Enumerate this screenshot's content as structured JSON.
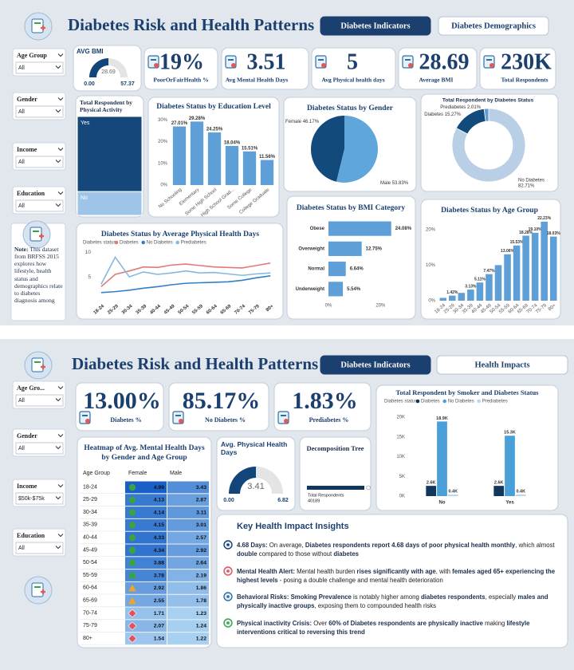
{
  "dashboards": [
    {
      "title": "Diabetes Risk and Health Patterns",
      "tabs": [
        "Diabetes Indicators",
        "Diabetes Demographics"
      ],
      "filters": [
        {
          "label": "Age Group",
          "value": "All"
        },
        {
          "label": "Gender",
          "value": "All"
        },
        {
          "label": "Income",
          "value": "All"
        },
        {
          "label": "Education",
          "value": "All"
        }
      ],
      "note": {
        "label": "Note:",
        "text": "This dataset from BRFSS 2015 explores how lifestyle, health status and demographics relate to diabetes diagnosis among"
      },
      "gauge": {
        "type": "gauge",
        "title": "AVG BMI",
        "value": 28.69,
        "range": [
          {
            "value": 0,
            "label": "0.00"
          },
          57.37
        ],
        "color": "#12457a"
      },
      "kpis": [
        {
          "value": "19%",
          "label": "PoorOrFairHealth %"
        },
        {
          "value": "3.51",
          "label": "Avg Mental Health Days"
        },
        {
          "value": "5",
          "label": "Avg Physical health days"
        },
        {
          "value": "28.69",
          "label": "Average BMI"
        },
        {
          "value": "230K",
          "label": "Total Respondents"
        }
      ],
      "activity": {
        "type": "treemap",
        "title": "Total Respondent by Physical Activity",
        "categories": [
          "Yes",
          "No"
        ],
        "values": [
          76,
          24
        ],
        "colors": [
          "#16477a",
          "#9ec5e8"
        ]
      },
      "education": {
        "type": "bar",
        "title": "Diabetes Status by Education Level",
        "categories": [
          "No Schooling",
          "Elementary",
          "Some High School",
          "High School Grad...",
          "Some College",
          "College Graduate"
        ],
        "values": [
          27.01,
          29.28,
          24.25,
          18.04,
          15.51,
          11.56
        ],
        "value_labels": [
          "27.01%",
          "29.28%",
          "24.25%",
          "18.04%",
          "15.51%",
          "11.56%"
        ],
        "color": "#5d9fd6",
        "ylim": [
          0,
          32
        ],
        "yticks": [
          {
            "value": 0,
            "label": "0%"
          },
          {
            "value": 10,
            "label": "10%"
          },
          {
            "value": 20,
            "label": "20%"
          },
          {
            "value": 30,
            "label": "30%"
          }
        ]
      },
      "gender": {
        "type": "pie",
        "title": "Diabetes Status by Gender",
        "categories": [
          "Female",
          "Male"
        ],
        "values": [
          46.17,
          53.83
        ],
        "value_labels": [
          "46.17%",
          "53.83%"
        ],
        "colors": [
          "#134a7c",
          "#5fa6da"
        ]
      },
      "status": {
        "type": "donut",
        "title": "Total Respondent by Diabetes Status",
        "categories": [
          "No Diabetes",
          "Diabetes",
          "Prediabetes"
        ],
        "values": [
          82.71,
          15.27,
          2.01
        ],
        "value_labels": [
          "82.71%",
          "15.27%",
          "2.01%"
        ],
        "colors": [
          "#b9cfe5",
          "#134a7c",
          "#5f9ed1"
        ]
      },
      "physical_days": {
        "type": "line",
        "title": "Diabetes Status by Average Physical Health Days",
        "legend_title": "Diabetes status",
        "categories": [
          "18-24",
          "25-29",
          "30-34",
          "35-39",
          "40-44",
          "45-49",
          "50-54",
          "55-59",
          "60-64",
          "65-69",
          "70-74",
          "75-79",
          "80+"
        ],
        "series": [
          {
            "name": "Diabetes",
            "color": "#e07b78",
            "values": [
              3.0,
              5.5,
              6.2,
              7.0,
              6.9,
              7.4,
              7.6,
              7.3,
              7.0,
              6.9,
              6.8,
              7.3,
              7.8
            ]
          },
          {
            "name": "No Diabetes",
            "color": "#2f80c8",
            "values": [
              1.8,
              2.0,
              2.3,
              2.7,
              3.0,
              3.4,
              3.7,
              3.8,
              3.9,
              4.0,
              4.3,
              4.8,
              5.2
            ]
          },
          {
            "name": "Prediabetes",
            "color": "#86b8df",
            "values": [
              3.5,
              9.0,
              5.0,
              6.0,
              5.5,
              5.8,
              6.2,
              5.8,
              5.9,
              5.6,
              5.3,
              5.6,
              5.8
            ]
          }
        ],
        "ylim": [
          0,
          11
        ],
        "yticks": [
          5,
          10
        ]
      },
      "bmi": {
        "type": "hbar",
        "title": "Diabetes Status by BMI Category",
        "categories": [
          "Obese",
          "Overweight",
          "Normal",
          "Underweight"
        ],
        "values": [
          24.08,
          12.75,
          6.64,
          5.54
        ],
        "value_labels": [
          "24.08%",
          "12.75%",
          "6.64%",
          "5.54%"
        ],
        "color": "#5d9fd6",
        "xlim": [
          0,
          26
        ],
        "xticks": [
          {
            "value": 0,
            "label": "0%"
          },
          {
            "value": 20,
            "label": "20%"
          }
        ]
      },
      "age": {
        "type": "bar",
        "title": "Diabetes Status by Age Group",
        "categories": [
          "18-24",
          "25-29",
          "30-34",
          "35-39",
          "40-44",
          "45-49",
          "50-54",
          "55-59",
          "60-64",
          "65-69",
          "70-74",
          "75-79",
          "80+"
        ],
        "values": [
          0.8,
          1.42,
          2.2,
          3.13,
          5.11,
          7.47,
          10.0,
          13.06,
          15.53,
          18.28,
          19.1,
          22.23,
          18.03
        ],
        "value_labels": [
          null,
          "1.42%",
          null,
          "3.13%",
          "5.11%",
          "7.47%",
          null,
          "13.06%",
          "15.53%",
          "18.28%",
          "19.10%",
          "22.23%",
          "18.03%"
        ],
        "color": "#5d9fd6",
        "ylim": [
          0,
          24
        ],
        "yticks": [
          {
            "value": 0,
            "label": "0%"
          },
          {
            "value": 10,
            "label": "10%"
          },
          {
            "value": 20,
            "label": "20%"
          }
        ]
      }
    },
    {
      "title": "Diabetes Risk and Health Patterns",
      "tabs": [
        "Diabetes Indicators",
        "Health Impacts"
      ],
      "filters": [
        {
          "label": "Age Gro...",
          "value": "All"
        },
        {
          "label": "Gender",
          "value": "All"
        },
        {
          "label": "Income",
          "value": "$50k-$75k"
        },
        {
          "label": "Education",
          "value": "All"
        }
      ],
      "kpis": [
        {
          "value": "13.00%",
          "label": "Diabetes %"
        },
        {
          "value": "85.17%",
          "label": "No Diabetes %"
        },
        {
          "value": "1.83%",
          "label": "Prediabetes %"
        }
      ],
      "smoker": {
        "type": "bar",
        "title": "Total Respondent by Smoker and Diabetes Status",
        "legend_title": "Diabetes status",
        "categories": [
          "No",
          "Yes"
        ],
        "series": [
          {
            "name": "Diabetes",
            "color": "#12375e",
            "values": [
              2600,
              2600
            ],
            "value_labels": [
              "2.6K",
              "2.6K"
            ]
          },
          {
            "name": "No Diabetes",
            "color": "#4a9fd8",
            "values": [
              18900,
              15300
            ],
            "value_labels": [
              "18.9K",
              "15.3K"
            ]
          },
          {
            "name": "Prediabetes",
            "color": "#bcd6ee",
            "values": [
              400,
              400
            ],
            "value_labels": [
              "0.4K",
              "0.4K"
            ]
          }
        ],
        "ylim": [
          0,
          20000
        ],
        "yticks": [
          {
            "value": 0,
            "label": "0K"
          },
          {
            "value": 5000,
            "label": "5K"
          },
          {
            "value": 10000,
            "label": "10K"
          },
          {
            "value": 15000,
            "label": "15K"
          },
          {
            "value": 20000,
            "label": "20K"
          }
        ]
      },
      "heatmap": {
        "title": "Heatmap of Avg. Mental Health Days by Gender and Age Group",
        "columns": [
          "Age Group",
          "Female",
          "Male"
        ],
        "rows": [
          [
            "18-24",
            4.99,
            3.43
          ],
          [
            "25-29",
            4.13,
            2.87
          ],
          [
            "30-34",
            4.14,
            3.11
          ],
          [
            "35-39",
            4.15,
            3.01
          ],
          [
            "40-44",
            4.33,
            2.57
          ],
          [
            "45-49",
            4.34,
            2.92
          ],
          [
            "50-54",
            3.88,
            2.64
          ],
          [
            "55-59",
            3.78,
            2.19
          ],
          [
            "60-64",
            2.92,
            1.86
          ],
          [
            "65-69",
            2.55,
            1.78
          ],
          [
            "70-74",
            1.71,
            1.23
          ],
          [
            "75-79",
            2.07,
            1.24
          ],
          [
            "80+",
            1.54,
            1.22
          ]
        ]
      },
      "gauge": {
        "type": "gauge",
        "title": "Avg. Physical Health Days",
        "value": 3.41,
        "range": [
          {
            "value": 0,
            "label": "0.00"
          },
          6.82
        ],
        "color": "#12457a"
      },
      "decomposition": {
        "title": "Decomposition Tree",
        "label": "Total Respondents",
        "value": 40189
      },
      "insights": {
        "title": "Key Health Impact Insights",
        "items": [
          [
            {
              "text": "4.68 Days:",
              "bold": true
            },
            {
              "text": " On average, ",
              "bold": false
            },
            {
              "text": "Diabetes respondents report 4.68 days of poor physical health monthly",
              "bold": true
            },
            {
              "text": ", which almost ",
              "bold": false
            },
            {
              "text": "double",
              "bold": true
            },
            {
              "text": " compared to those without ",
              "bold": false
            },
            {
              "text": "diabetes",
              "bold": true
            }
          ],
          [
            {
              "text": "Mental Health Alert:",
              "bold": true
            },
            {
              "text": " Mental health burden ",
              "bold": false
            },
            {
              "text": "rises significantly with age",
              "bold": true
            },
            {
              "text": ", with ",
              "bold": false
            },
            {
              "text": "females aged 65+ experiencing the highest levels",
              "bold": true
            },
            {
              "text": " - posing a double challenge and mental health deterioration",
              "bold": false
            }
          ],
          [
            {
              "text": "Behavioral Risks: Smoking Prevalence",
              "bold": true
            },
            {
              "text": " is notably higher among ",
              "bold": false
            },
            {
              "text": "diabetes respondents",
              "bold": true
            },
            {
              "text": ", especially ",
              "bold": false
            },
            {
              "text": "males and physically inactive groups",
              "bold": true
            },
            {
              "text": ", exposing them to compounded health risks",
              "bold": false
            }
          ],
          [
            {
              "text": "Physical inactivity Crisis:",
              "bold": true
            },
            {
              "text": " Over ",
              "bold": false
            },
            {
              "text": "60% of Diabetes respondents are physically inactive",
              "bold": true
            },
            {
              "text": " making ",
              "bold": false
            },
            {
              "text": "lifestyle interventions critical to reversing this trend",
              "bold": true
            }
          ]
        ]
      }
    }
  ]
}
